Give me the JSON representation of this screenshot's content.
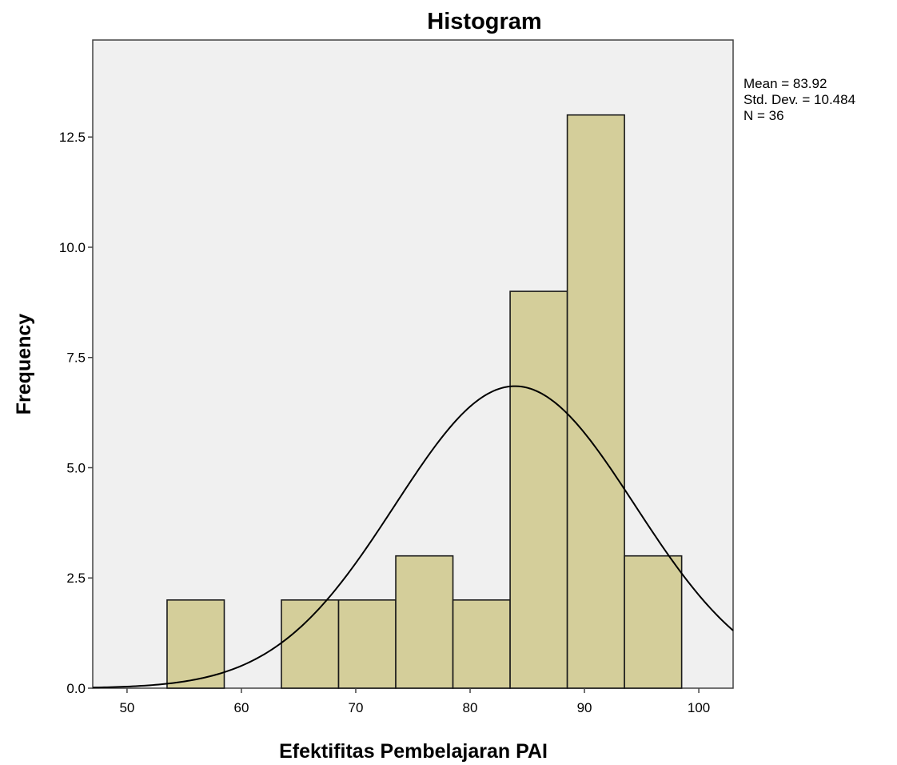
{
  "chart_data": {
    "type": "bar",
    "title": "Histogram",
    "xlabel": "Efektifitas Pembelajaran PAI",
    "ylabel": "Frequency",
    "xlim": [
      47,
      103
    ],
    "ylim": [
      0,
      14.7
    ],
    "x_ticks": [
      "50",
      "60",
      "70",
      "80",
      "90",
      "100"
    ],
    "y_ticks": [
      "0.0",
      "2.5",
      "5.0",
      "7.5",
      "10.0",
      "12.5"
    ],
    "bins": [
      {
        "start": 53.5,
        "end": 58.5,
        "count": 2
      },
      {
        "start": 63.5,
        "end": 68.5,
        "count": 2
      },
      {
        "start": 68.5,
        "end": 73.5,
        "count": 2
      },
      {
        "start": 73.5,
        "end": 78.5,
        "count": 3
      },
      {
        "start": 78.5,
        "end": 83.5,
        "count": 2
      },
      {
        "start": 83.5,
        "end": 88.5,
        "count": 9
      },
      {
        "start": 88.5,
        "end": 93.5,
        "count": 13
      },
      {
        "start": 93.5,
        "end": 98.5,
        "count": 3
      }
    ],
    "normal_curve": {
      "mean": 83.92,
      "std_dev": 10.484,
      "n": 36,
      "bin_width": 5
    },
    "stats_lines": [
      "Mean = 83.92",
      "Std. Dev. = 10.484",
      "N = 36"
    ],
    "colors": {
      "bar_fill": "#d4ce9a",
      "plot_background": "#f0f0f0",
      "curve": "#000000"
    },
    "grid": false
  }
}
